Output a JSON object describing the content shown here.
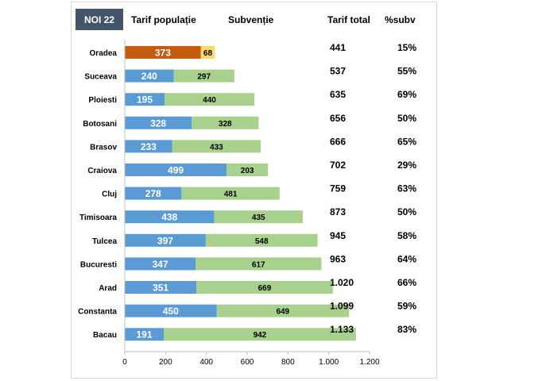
{
  "header": {
    "badge": "NOI 22",
    "col_tarif_populatie": "Tarif populație",
    "col_subventie": "Subvenție",
    "col_tarif_total": "Tarif total",
    "col_pct_subv": "%subv"
  },
  "chart_data": {
    "type": "bar",
    "orientation": "horizontal",
    "stacked": true,
    "categories": [
      "Oradea",
      "Suceava",
      "Ploiesti",
      "Botosani",
      "Brasov",
      "Craiova",
      "Cluj",
      "Timisoara",
      "Tulcea",
      "Bucuresti",
      "Arad",
      "Constanta",
      "Bacau"
    ],
    "series": [
      {
        "name": "Tarif populație",
        "values": [
          373,
          240,
          195,
          328,
          233,
          499,
          278,
          438,
          397,
          347,
          351,
          450,
          191
        ]
      },
      {
        "name": "Subvenție",
        "values": [
          68,
          297,
          440,
          328,
          433,
          203,
          481,
          435,
          548,
          617,
          669,
          649,
          942
        ]
      }
    ],
    "tarif_total": [
      "441",
      "537",
      "635",
      "656",
      "666",
      "702",
      "759",
      "873",
      "945",
      "963",
      "1.020",
      "1.099",
      "1.133"
    ],
    "pct_subv": [
      "15%",
      "55%",
      "69%",
      "50%",
      "65%",
      "29%",
      "63%",
      "50%",
      "58%",
      "64%",
      "66%",
      "59%",
      "83%"
    ],
    "xlim": [
      0,
      1200
    ],
    "x_ticks": [
      0,
      200,
      400,
      600,
      800,
      1000,
      1200
    ],
    "x_tick_labels": [
      "0",
      "200",
      "400",
      "600",
      "800",
      "1.000",
      "1.200"
    ],
    "grid": false,
    "colors": {
      "populatie": "#5b9bd5",
      "subventie": "#a9d18e",
      "highlight_populatie": "#c55a11",
      "highlight_subventie": "#ffd966"
    },
    "highlight_index": 0
  }
}
